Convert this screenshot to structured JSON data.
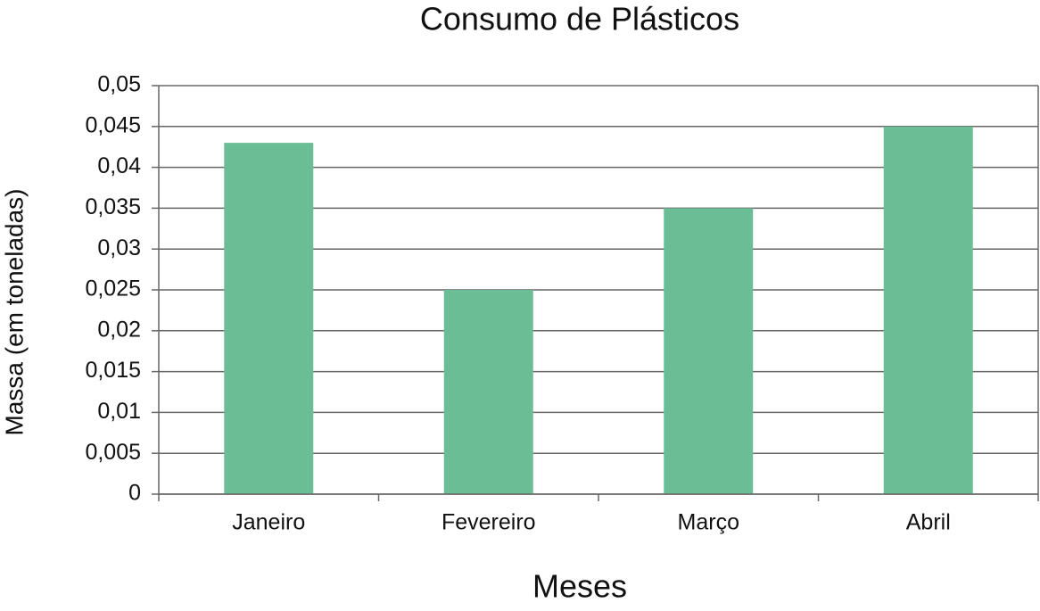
{
  "chart_data": {
    "type": "bar",
    "title": "Consumo de Plásticos",
    "x_label": "Meses",
    "y_label": "Massa (em toneladas)",
    "categories": [
      "Janeiro",
      "Fevereiro",
      "Março",
      "Abril"
    ],
    "values": [
      0.043,
      0.025,
      0.035,
      0.045
    ],
    "color": "#6bbd96",
    "ylim": [
      0,
      0.05
    ],
    "yticks": [
      0,
      {
        "value": 0.005,
        "label": "0,005"
      },
      {
        "value": 0.01,
        "label": "0,01"
      },
      {
        "value": 0.015,
        "label": "0,015"
      },
      {
        "value": 0.02,
        "label": "0,02"
      },
      {
        "value": 0.025,
        "label": "0,025"
      },
      {
        "value": 0.03,
        "label": "0,03"
      },
      {
        "value": 0.035,
        "label": "0,035"
      },
      {
        "value": 0.04,
        "label": "0,04"
      },
      {
        "value": 0.045,
        "label": "0,045"
      },
      {
        "value": 0.05,
        "label": "0,05"
      }
    ],
    "grid": true
  }
}
